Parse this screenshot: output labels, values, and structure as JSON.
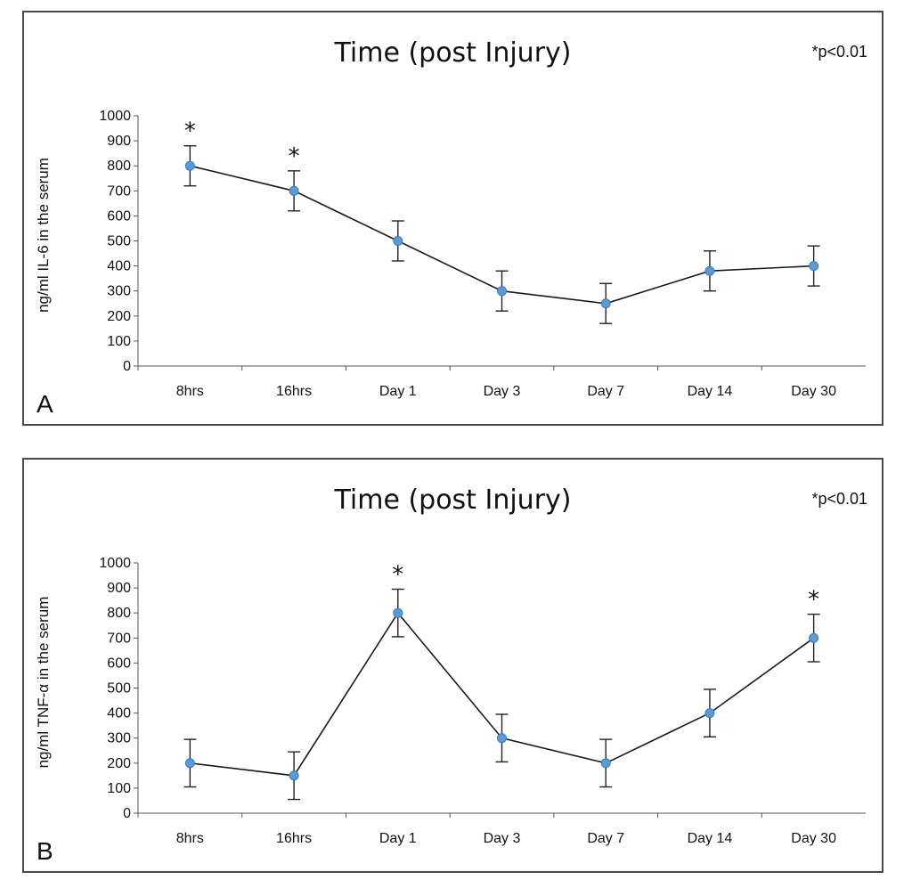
{
  "panels": [
    {
      "title": "Time (post Injury)",
      "significance_note": "*p<0.01",
      "panel_label": "A",
      "ylabel": "ng/ml IL-6 in the serum"
    },
    {
      "title": "Time (post Injury)",
      "significance_note": "*p<0.01",
      "panel_label": "B",
      "ylabel": "ng/ml TNF-α in the serum"
    }
  ],
  "chart_data": [
    {
      "type": "line",
      "title": "Time (post Injury)",
      "ylabel": "ng/ml IL-6 in the serum",
      "categories": [
        "8hrs",
        "16hrs",
        "Day 1",
        "Day 3",
        "Day 7",
        "Day 14",
        "Day 30"
      ],
      "ylim": [
        0,
        1000
      ],
      "yticks": [
        0,
        100,
        200,
        300,
        400,
        500,
        600,
        700,
        800,
        900,
        1000
      ],
      "values": [
        800,
        700,
        500,
        300,
        250,
        380,
        400
      ],
      "error": [
        80,
        80,
        80,
        80,
        80,
        80,
        80
      ],
      "significant": [
        true,
        true,
        false,
        false,
        false,
        false,
        false
      ],
      "significance_marker": "*",
      "line_color": "#1a1a1a",
      "marker_color": "#5b9bd5",
      "grid": false
    },
    {
      "type": "line",
      "title": "Time (post Injury)",
      "ylabel": "ng/ml TNF-α in the serum",
      "categories": [
        "8hrs",
        "16hrs",
        "Day 1",
        "Day 3",
        "Day 7",
        "Day 14",
        "Day 30"
      ],
      "ylim": [
        0,
        1000
      ],
      "yticks": [
        0,
        100,
        200,
        300,
        400,
        500,
        600,
        700,
        800,
        900,
        1000
      ],
      "values": [
        200,
        150,
        800,
        300,
        200,
        400,
        700
      ],
      "error": [
        95,
        95,
        95,
        95,
        95,
        95,
        95
      ],
      "significant": [
        false,
        false,
        true,
        false,
        false,
        false,
        true
      ],
      "significance_marker": "*",
      "line_color": "#1a1a1a",
      "marker_color": "#5b9bd5",
      "grid": false
    }
  ]
}
